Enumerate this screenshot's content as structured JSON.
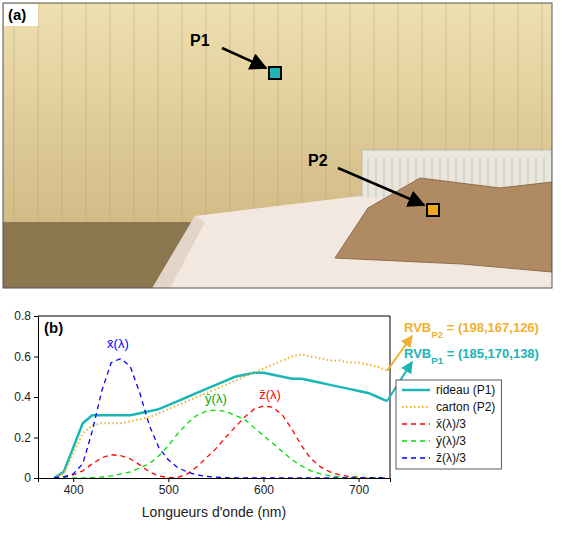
{
  "photo": {
    "panel_label": "(a)",
    "points": [
      {
        "label": "P1",
        "color": "#1fb5b5"
      },
      {
        "label": "P2",
        "color": "#f0a820"
      }
    ]
  },
  "chart_data": {
    "type": "line",
    "panel_label": "(b)",
    "xlabel": "Longueurs d'onde (nm)",
    "x": [
      380,
      390,
      400,
      410,
      420,
      430,
      440,
      450,
      460,
      470,
      480,
      490,
      500,
      510,
      520,
      530,
      540,
      550,
      560,
      570,
      580,
      590,
      600,
      610,
      620,
      630,
      640,
      650,
      660,
      670,
      680,
      690,
      700,
      710,
      720,
      730
    ],
    "xlim": [
      363,
      733
    ],
    "ylim": [
      0,
      0.8
    ],
    "xticks": [
      400,
      500,
      600,
      700
    ],
    "yticks": [
      0,
      0.2,
      0.4,
      0.6,
      0.8
    ],
    "legend": "right",
    "series": [
      {
        "name": "rideau (P1)",
        "color": "#1ab5b5",
        "line_style": "solid",
        "rgb": {
          "label": "RVB",
          "subscript": "P1",
          "text": " = (185,170,138)"
        },
        "values": [
          0.0,
          0.03,
          0.15,
          0.27,
          0.31,
          0.31,
          0.31,
          0.31,
          0.31,
          0.32,
          0.33,
          0.34,
          0.36,
          0.38,
          0.4,
          0.42,
          0.44,
          0.46,
          0.48,
          0.5,
          0.51,
          0.52,
          0.52,
          0.51,
          0.5,
          0.49,
          0.49,
          0.48,
          0.47,
          0.46,
          0.45,
          0.44,
          0.43,
          0.42,
          0.4,
          0.38
        ]
      },
      {
        "name": "carton (P2)",
        "color": "#f0b030",
        "line_style": "dotted",
        "rgb": {
          "label": "RVB",
          "subscript": "P2",
          "text": " = (198,167,126)"
        },
        "values": [
          0.0,
          0.02,
          0.12,
          0.22,
          0.26,
          0.27,
          0.27,
          0.27,
          0.28,
          0.29,
          0.3,
          0.32,
          0.34,
          0.36,
          0.38,
          0.4,
          0.42,
          0.44,
          0.46,
          0.48,
          0.5,
          0.52,
          0.54,
          0.56,
          0.58,
          0.6,
          0.61,
          0.6,
          0.59,
          0.58,
          0.58,
          0.57,
          0.57,
          0.56,
          0.55,
          0.53
        ]
      },
      {
        "name": "x̄(λ)/3",
        "color": "#ff0000",
        "line_style": "dashed",
        "values": [
          0.0,
          0.005,
          0.015,
          0.035,
          0.07,
          0.1,
          0.115,
          0.11,
          0.095,
          0.065,
          0.03,
          0.01,
          0.002,
          0.003,
          0.02,
          0.055,
          0.1,
          0.145,
          0.2,
          0.25,
          0.3,
          0.34,
          0.355,
          0.35,
          0.31,
          0.24,
          0.16,
          0.095,
          0.055,
          0.03,
          0.015,
          0.008,
          0.004,
          0.002,
          0.001,
          0.0
        ]
      },
      {
        "name": "ȳ(λ)/3",
        "color": "#00dd00",
        "line_style": "dashed",
        "values": [
          0.0,
          0.0,
          0.0,
          0.0,
          0.002,
          0.005,
          0.01,
          0.02,
          0.03,
          0.05,
          0.07,
          0.11,
          0.16,
          0.22,
          0.27,
          0.31,
          0.33,
          0.335,
          0.33,
          0.31,
          0.29,
          0.25,
          0.21,
          0.17,
          0.13,
          0.09,
          0.06,
          0.035,
          0.02,
          0.01,
          0.005,
          0.003,
          0.002,
          0.001,
          0.0,
          0.0
        ]
      },
      {
        "name": "z̄(λ)/3",
        "color": "#0000ff",
        "line_style": "dashed",
        "values": [
          0.002,
          0.005,
          0.02,
          0.07,
          0.23,
          0.43,
          0.57,
          0.59,
          0.55,
          0.42,
          0.26,
          0.15,
          0.09,
          0.05,
          0.03,
          0.015,
          0.008,
          0.004,
          0.002,
          0.0,
          0.0,
          0.0,
          0.0,
          0.0,
          0.0,
          0.0,
          0.0,
          0.0,
          0.0,
          0.0,
          0.0,
          0.0,
          0.0,
          0.0,
          0.0,
          0.0
        ]
      }
    ],
    "annotations": [
      {
        "text": "x̄(λ)",
        "x": 447,
        "y": 0.64,
        "color": "#0000ff"
      },
      {
        "text": "ȳ(λ)",
        "x": 550,
        "y": 0.37,
        "color": "#00aa00"
      },
      {
        "text": "z̄(λ)",
        "x": 607,
        "y": 0.39,
        "color": "#ff0000"
      }
    ]
  }
}
